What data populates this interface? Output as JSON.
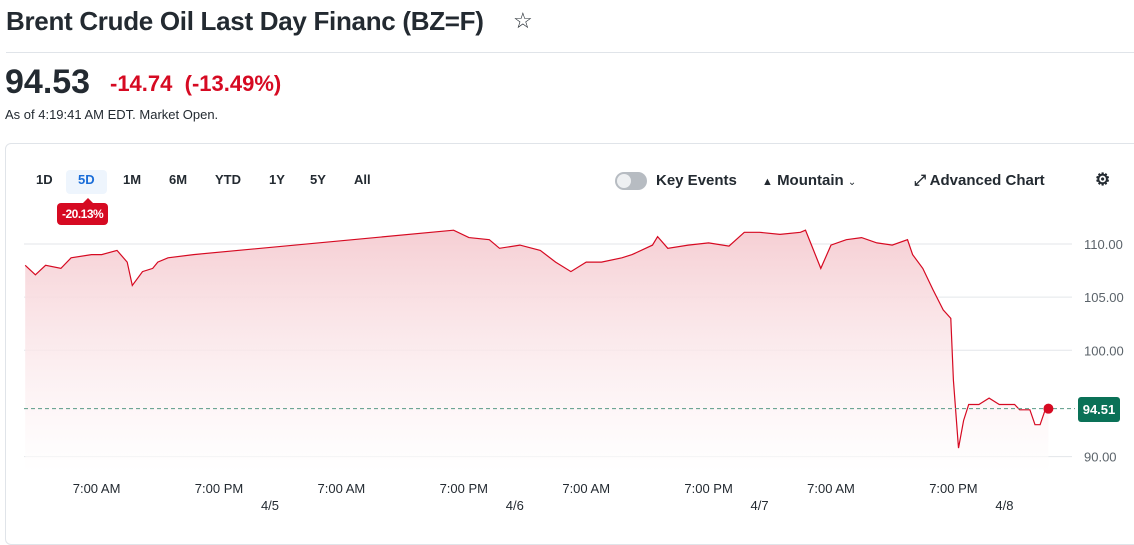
{
  "header": {
    "title": "Brent Crude Oil Last Day Financ (BZ=F)",
    "star_icon": "star-outline-icon"
  },
  "quote": {
    "price": "94.53",
    "change": "-14.74",
    "change_pct": "(-13.49%)",
    "as_of": "As of 4:19:41 AM EDT. Market Open."
  },
  "ranges": {
    "items": [
      "1D",
      "5D",
      "1M",
      "6M",
      "YTD",
      "1Y",
      "5Y",
      "All"
    ],
    "selected": "5D",
    "selected_change": "-20.13%"
  },
  "controls": {
    "key_events": "Key Events",
    "key_events_on": false,
    "chart_type": "Mountain",
    "advanced": "Advanced Chart",
    "settings_icon": "gear-icon"
  },
  "colors": {
    "line": "#d60a22",
    "fill": "#f8d7db",
    "last_badge": "#0a7157",
    "negative": "#d60a22",
    "selected_tab": "#1a6dd8"
  },
  "chart_data": {
    "type": "area",
    "ylim": [
      89,
      113
    ],
    "yticks": [
      "110.00",
      "105.00",
      "100.00",
      "90.00"
    ],
    "ytick_values": [
      110,
      105,
      100,
      90
    ],
    "xticks": [
      "7:00 AM",
      "7:00 PM",
      "7:00 AM",
      "7:00 PM",
      "7:00 AM",
      "7:00 PM",
      "7:00 AM",
      "7:00 PM"
    ],
    "xtick_times": [
      "4/4 07:00",
      "4/4 19:00",
      "4/5 07:00",
      "4/5 19:00",
      "4/6 07:00",
      "4/6 19:00",
      "4/7 07:00",
      "4/7 19:00"
    ],
    "date_labels": [
      "4/5",
      "4/6",
      "4/7",
      "4/8"
    ],
    "date_times": [
      "4/5 00:00",
      "4/6 00:00",
      "4/7 00:00",
      "4/8 00:00"
    ],
    "last_value": "94.51",
    "grid": true,
    "points": [
      [
        "4/4 00:00",
        108.0
      ],
      [
        "4/4 01:00",
        107.1
      ],
      [
        "4/4 02:00",
        108.0
      ],
      [
        "4/4 03:30",
        107.7
      ],
      [
        "4/4 04:30",
        108.7
      ],
      [
        "4/4 06:30",
        109.0
      ],
      [
        "4/4 07:30",
        109.0
      ],
      [
        "4/4 09:00",
        109.4
      ],
      [
        "4/4 10:00",
        108.3
      ],
      [
        "4/4 10:30",
        106.1
      ],
      [
        "4/4 11:30",
        107.4
      ],
      [
        "4/4 12:30",
        107.7
      ],
      [
        "4/4 13:00",
        108.3
      ],
      [
        "4/4 14:00",
        108.7
      ],
      [
        "4/4 16:30",
        109.0
      ],
      [
        "4/5 18:00",
        111.3
      ],
      [
        "4/5 19:30",
        110.6
      ],
      [
        "4/5 21:30",
        110.4
      ],
      [
        "4/5 22:30",
        109.6
      ],
      [
        "4/6 00:30",
        109.9
      ],
      [
        "4/6 02:30",
        109.4
      ],
      [
        "4/6 04:00",
        108.3
      ],
      [
        "4/6 05:30",
        107.4
      ],
      [
        "4/6 07:00",
        108.3
      ],
      [
        "4/6 08:30",
        108.3
      ],
      [
        "4/6 10:30",
        108.7
      ],
      [
        "4/6 11:30",
        109.0
      ],
      [
        "4/6 13:30",
        109.9
      ],
      [
        "4/6 14:00",
        110.7
      ],
      [
        "4/6 15:00",
        109.6
      ],
      [
        "4/6 17:00",
        109.9
      ],
      [
        "4/6 19:00",
        110.1
      ],
      [
        "4/6 21:00",
        109.8
      ],
      [
        "4/6 22:30",
        111.1
      ],
      [
        "4/7 00:00",
        111.1
      ],
      [
        "4/7 02:00",
        110.9
      ],
      [
        "4/7 04:00",
        111.1
      ],
      [
        "4/7 04:30",
        111.3
      ],
      [
        "4/7 05:00",
        110.1
      ],
      [
        "4/7 06:00",
        107.7
      ],
      [
        "4/7 07:00",
        109.9
      ],
      [
        "4/7 08:30",
        110.4
      ],
      [
        "4/7 10:00",
        110.6
      ],
      [
        "4/7 11:30",
        110.1
      ],
      [
        "4/7 13:00",
        109.9
      ],
      [
        "4/7 14:30",
        110.4
      ],
      [
        "4/7 15:00",
        109.0
      ],
      [
        "4/7 16:00",
        107.7
      ],
      [
        "4/7 17:00",
        105.7
      ],
      [
        "4/7 18:00",
        103.8
      ],
      [
        "4/7 18:45",
        103.0
      ],
      [
        "4/7 19:00",
        97.2
      ],
      [
        "4/7 19:30",
        90.8
      ],
      [
        "4/7 20:00",
        93.4
      ],
      [
        "4/7 20:30",
        94.9
      ],
      [
        "4/7 21:30",
        94.9
      ],
      [
        "4/7 22:30",
        95.5
      ],
      [
        "4/7 23:30",
        94.9
      ],
      [
        "4/8 01:00",
        94.9
      ],
      [
        "4/8 01:30",
        94.4
      ],
      [
        "4/8 02:30",
        94.4
      ],
      [
        "4/8 03:00",
        93.0
      ],
      [
        "4/8 03:30",
        93.0
      ],
      [
        "4/8 04:00",
        94.4
      ],
      [
        "4/8 04:19",
        94.51
      ]
    ]
  }
}
